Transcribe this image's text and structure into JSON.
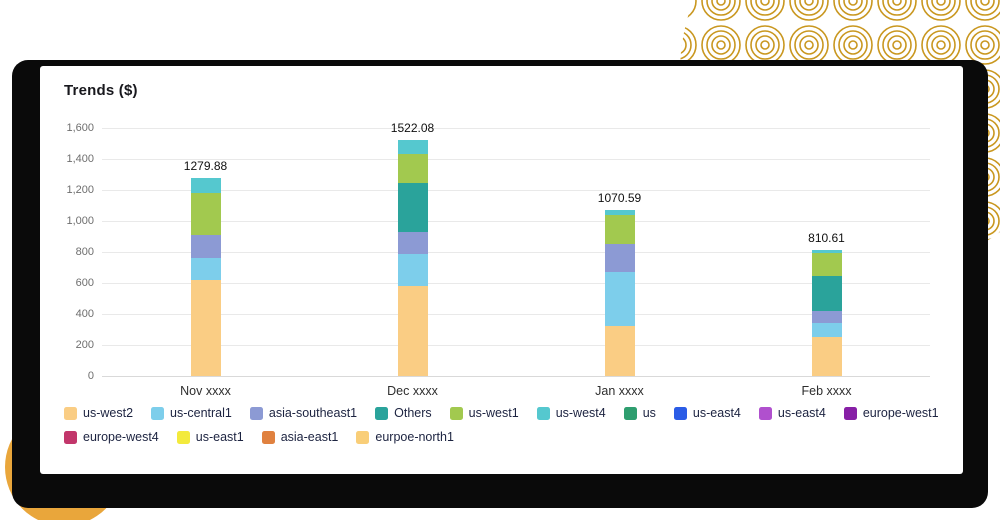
{
  "card": {
    "title": "Trends ($)"
  },
  "decor": {
    "pattern_gold": "#c9971f",
    "amber_circle": "#e9a63b",
    "panel_black": "#0a0a0a"
  },
  "chart_data": {
    "type": "bar",
    "stacked": true,
    "title": "Trends ($)",
    "categories": [
      "Nov xxxx",
      "Dec xxxx",
      "Jan xxxx",
      "Feb xxxx"
    ],
    "totals": [
      "1279.88",
      "1522.08",
      "1070.59",
      "810.61"
    ],
    "ylim": [
      0,
      1600
    ],
    "yticks": [
      0,
      200,
      400,
      600,
      800,
      1000,
      1200,
      1400,
      1600
    ],
    "ytick_labels": [
      "0",
      "200",
      "400",
      "600",
      "800",
      "1,000",
      "1,200",
      "1,400",
      "1,600"
    ],
    "grid": true,
    "legend_position": "bottom",
    "legend_row_split": 10,
    "series": [
      {
        "name": "us-west2",
        "color": "#facd84",
        "values": [
          620,
          580,
          322,
          250
        ]
      },
      {
        "name": "us-central1",
        "color": "#7dceeb",
        "values": [
          142,
          206,
          348,
          95
        ]
      },
      {
        "name": "asia-southeast1",
        "color": "#8c9ad4",
        "values": [
          148,
          142,
          180,
          75
        ]
      },
      {
        "name": "Others",
        "color": "#2aa39b",
        "values": [
          0,
          316,
          0,
          225
        ]
      },
      {
        "name": "us-west1",
        "color": "#a2c94f",
        "values": [
          270,
          187,
          187,
          150
        ]
      },
      {
        "name": "us-west4",
        "color": "#55c8cf",
        "values": [
          99.88,
          91.08,
          33.59,
          15.61
        ]
      },
      {
        "name": "us",
        "color": "#2e9e6f",
        "values": [
          0,
          0,
          0,
          0
        ]
      },
      {
        "name": "us-east4",
        "color": "#2b5ce6",
        "values": [
          0,
          0,
          0,
          0
        ]
      },
      {
        "name": "us-east4",
        "color": "#b050ce",
        "values": [
          0,
          0,
          0,
          0
        ]
      },
      {
        "name": "europe-west1",
        "color": "#871fa6",
        "values": [
          0,
          0,
          0,
          0
        ]
      },
      {
        "name": "europe-west4",
        "color": "#c2366b",
        "values": [
          0,
          0,
          0,
          0
        ]
      },
      {
        "name": "us-east1",
        "color": "#f3ea3c",
        "values": [
          0,
          0,
          0,
          0
        ]
      },
      {
        "name": "asia-east1",
        "color": "#e0813f",
        "values": [
          0,
          0,
          0,
          0
        ]
      },
      {
        "name": "eurpoe-north1",
        "color": "#f9ce78",
        "values": [
          0,
          0,
          0,
          0
        ]
      }
    ]
  }
}
